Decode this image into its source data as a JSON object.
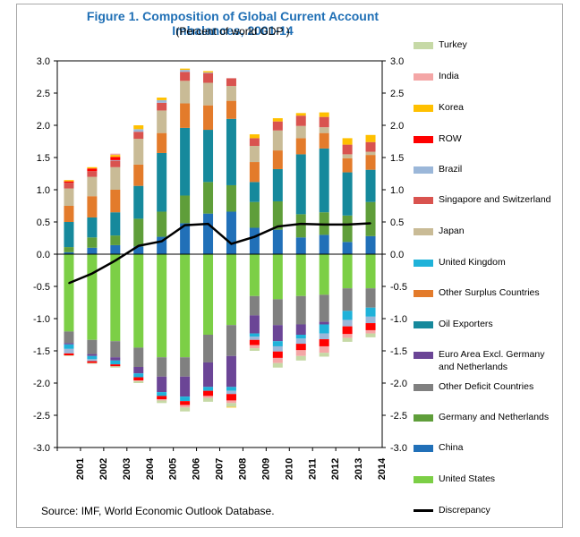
{
  "title": "Figure 1. Composition of Global Current Account Imbalances, 2001-14",
  "subtitle": "(Percent of world GDP )",
  "source": "Source: IMF, World Economic Outlook Database.",
  "chart_data": {
    "type": "bar",
    "stacked": true,
    "title": "Figure 1. Composition of Global Current Account Imbalances, 2001-14",
    "subtitle": "(Percent of world GDP )",
    "ylim": [
      -3.0,
      3.0
    ],
    "yticks": [
      "3.0",
      "2.5",
      "2.0",
      "1.5",
      "1.0",
      "0.5",
      "0.0",
      "-0.5",
      "-1.0",
      "-1.5",
      "-2.0",
      "-2.5",
      "-3.0"
    ],
    "categories": [
      "2001",
      "2002",
      "2003",
      "2004",
      "2005",
      "2006",
      "2007",
      "2008",
      "2009",
      "2010",
      "2011",
      "2012",
      "2013",
      "2014"
    ],
    "legend_position": "right",
    "series": [
      {
        "name": "Turkey",
        "color": "#c6d9a6",
        "values": [
          0.0,
          0.0,
          0.0,
          0.0,
          0.0,
          0.0,
          0.0,
          0.0,
          0.0,
          0.0,
          0.0,
          0.0,
          0.0,
          0.0
        ],
        "neg": [
          -0.01,
          -0.01,
          -0.02,
          -0.03,
          -0.04,
          -0.06,
          -0.06,
          -0.06,
          -0.04,
          -0.07,
          -0.07,
          -0.06,
          -0.06,
          -0.06
        ]
      },
      {
        "name": "India",
        "color": "#f4a6a6",
        "values": [
          0.0,
          0.0,
          0.02,
          0.0,
          0.0,
          0.0,
          0.0,
          0.0,
          0.0,
          0.0,
          0.0,
          0.0,
          0.0,
          0.0
        ],
        "neg": [
          0.0,
          0.0,
          0.0,
          -0.01,
          -0.02,
          -0.04,
          -0.03,
          -0.04,
          -0.05,
          -0.08,
          -0.09,
          -0.1,
          -0.06,
          -0.05
        ]
      },
      {
        "name": "Korea",
        "color": "#ffc000",
        "values": [
          0.02,
          0.02,
          0.03,
          0.06,
          0.04,
          0.02,
          0.02,
          0.0,
          0.06,
          0.05,
          0.04,
          0.07,
          0.1,
          0.11
        ],
        "neg": [
          0.0,
          0.0,
          0.0,
          0.0,
          0.0,
          0.0,
          0.0,
          -0.01,
          0.0,
          0.0,
          0.0,
          0.0,
          0.0,
          0.0
        ]
      },
      {
        "name": "ROW",
        "color": "#ff0000",
        "values": [
          0.02,
          0.04,
          0.05,
          0.0,
          0.0,
          0.0,
          0.0,
          0.0,
          0.0,
          0.0,
          0.0,
          0.0,
          0.0,
          0.0
        ],
        "neg": [
          -0.03,
          -0.03,
          -0.03,
          -0.05,
          -0.05,
          -0.06,
          -0.08,
          -0.1,
          -0.08,
          -0.1,
          -0.1,
          -0.11,
          -0.12,
          -0.11
        ]
      },
      {
        "name": "Brazil",
        "color": "#9bb7d9",
        "values": [
          0.0,
          0.0,
          0.01,
          0.04,
          0.04,
          0.03,
          0.01,
          0.0,
          0.0,
          0.0,
          0.0,
          0.0,
          0.0,
          0.0
        ],
        "neg": [
          -0.07,
          -0.03,
          0.0,
          0.0,
          0.0,
          0.0,
          0.0,
          -0.05,
          -0.05,
          -0.08,
          -0.08,
          -0.09,
          -0.1,
          -0.1
        ]
      },
      {
        "name": "Singapore and Switzerland",
        "color": "#d9534f",
        "values": [
          0.09,
          0.09,
          0.1,
          0.11,
          0.12,
          0.14,
          0.15,
          0.12,
          0.12,
          0.14,
          0.16,
          0.16,
          0.15,
          0.15
        ],
        "neg": [
          0,
          0,
          0,
          0,
          0,
          0,
          0,
          0,
          0,
          0,
          0,
          0,
          0,
          0
        ]
      },
      {
        "name": "Japan",
        "color": "#c9bb96",
        "values": [
          0.27,
          0.3,
          0.35,
          0.4,
          0.35,
          0.35,
          0.35,
          0.23,
          0.25,
          0.31,
          0.19,
          0.09,
          0.06,
          0.05
        ],
        "neg": [
          0,
          0,
          0,
          0,
          0,
          0,
          0,
          0,
          0,
          0,
          0,
          0,
          0,
          0
        ]
      },
      {
        "name": "United Kingdom",
        "color": "#1fb2d9",
        "values": [
          0,
          0,
          0,
          0,
          0,
          0,
          0,
          0,
          0,
          0,
          0,
          0,
          0,
          0
        ],
        "neg": [
          -0.07,
          -0.05,
          -0.06,
          -0.06,
          -0.06,
          -0.07,
          -0.06,
          -0.06,
          -0.05,
          -0.08,
          -0.06,
          -0.14,
          -0.14,
          -0.14
        ]
      },
      {
        "name": "Other Surplus Countries",
        "color": "#e37b2b",
        "values": [
          0.25,
          0.33,
          0.35,
          0.33,
          0.31,
          0.38,
          0.38,
          0.28,
          0.31,
          0.29,
          0.25,
          0.24,
          0.22,
          0.23
        ],
        "neg": [
          0,
          0,
          0,
          0,
          0,
          0,
          0,
          0,
          0,
          0,
          0,
          0,
          0,
          0
        ]
      },
      {
        "name": "Oil Exporters",
        "color": "#16899c",
        "values": [
          0.39,
          0.31,
          0.36,
          0.51,
          0.91,
          1.05,
          0.81,
          1.03,
          0.31,
          0.5,
          0.93,
          0.99,
          0.67,
          0.5
        ],
        "neg": [
          0,
          0,
          0,
          0,
          0,
          0,
          0,
          0,
          0,
          0,
          0,
          0,
          0,
          0
        ]
      },
      {
        "name": "Euro Area  Excl. Germany and Netherlands",
        "color": "#6b4596",
        "values": [
          0,
          0,
          0,
          0,
          0,
          0,
          0,
          0,
          0,
          0,
          0,
          0,
          0,
          0
        ],
        "neg": [
          -0.02,
          -0.03,
          -0.05,
          -0.1,
          -0.24,
          -0.31,
          -0.38,
          -0.48,
          -0.28,
          -0.25,
          -0.16,
          -0.04,
          0.0,
          0.0
        ]
      },
      {
        "name": "Other Deficit Countries",
        "color": "#808080",
        "values": [
          0,
          0,
          0,
          0,
          0,
          0,
          0,
          0,
          0,
          0,
          0,
          0,
          0,
          0
        ],
        "neg": [
          -0.18,
          -0.22,
          -0.25,
          -0.3,
          -0.3,
          -0.3,
          -0.43,
          -0.48,
          -0.3,
          -0.4,
          -0.44,
          -0.42,
          -0.35,
          -0.3
        ]
      },
      {
        "name": "Germany and Netherlands",
        "color": "#5f9e3a",
        "values": [
          0.08,
          0.16,
          0.15,
          0.43,
          0.39,
          0.43,
          0.49,
          0.41,
          0.4,
          0.44,
          0.36,
          0.35,
          0.41,
          0.53
        ],
        "neg": [
          0,
          0,
          0,
          0,
          0,
          0,
          0,
          0,
          0,
          0,
          0,
          0,
          0,
          0
        ]
      },
      {
        "name": "China",
        "color": "#2170b8",
        "values": [
          0.03,
          0.1,
          0.14,
          0.12,
          0.27,
          0.48,
          0.63,
          0.66,
          0.41,
          0.38,
          0.26,
          0.3,
          0.19,
          0.28
        ],
        "neg": [
          0,
          0,
          0,
          0,
          0,
          0,
          0,
          0,
          0,
          0,
          0,
          0,
          0,
          0
        ]
      },
      {
        "name": "United States",
        "color": "#7ccf46",
        "values": [
          0,
          0,
          0,
          0,
          0,
          0,
          0,
          0,
          0,
          0,
          0,
          0,
          0,
          0
        ],
        "neg": [
          -1.2,
          -1.33,
          -1.35,
          -1.45,
          -1.6,
          -1.6,
          -1.25,
          -1.1,
          -0.65,
          -0.7,
          -0.65,
          -0.63,
          -0.53,
          -0.53
        ]
      },
      {
        "name": "Discrepancy",
        "color": "#000000",
        "type": "line",
        "values": [
          -0.45,
          -0.3,
          -0.1,
          0.13,
          0.2,
          0.45,
          0.47,
          0.16,
          0.27,
          0.43,
          0.47,
          0.46,
          0.46,
          0.48
        ]
      }
    ]
  }
}
